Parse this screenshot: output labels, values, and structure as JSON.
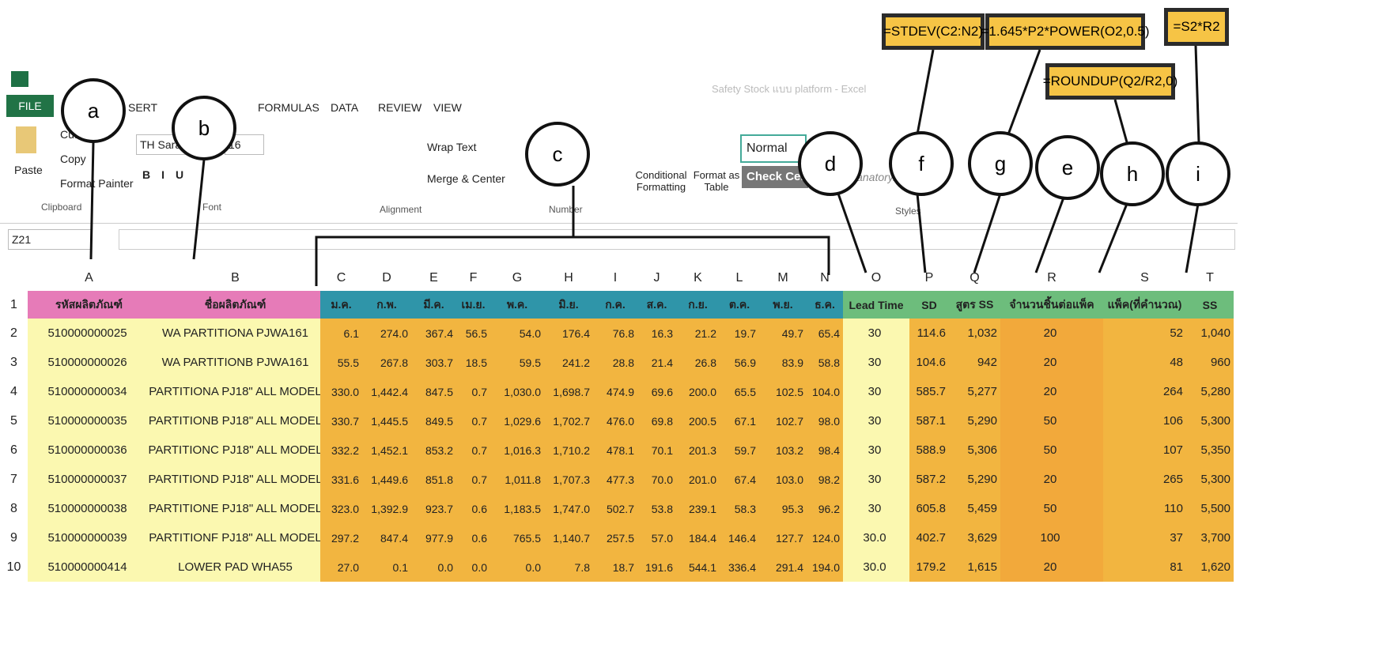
{
  "window_title": "Safety Stock แบบ platform - Excel",
  "ribbon": {
    "tabs": [
      "FILE",
      "SERT",
      "FORMULAS",
      "DATA",
      "REVIEW",
      "VIEW"
    ],
    "clipboard": {
      "paste": "Paste",
      "cut": "Cut",
      "copy": "Copy",
      "format_painter": "Format Painter",
      "label": "Clipboard"
    },
    "font": {
      "name": "TH Sarab",
      "size": "16",
      "label": "Font"
    },
    "alignment": {
      "wrap_text": "Wrap Text",
      "merge_center": "Merge & Center",
      "label": "Alignment"
    },
    "number": {
      "label": "Number"
    },
    "styles": {
      "conditional_formatting": "Conditional Formatting",
      "format_as_table": "Format as Table",
      "normal": "Normal",
      "check_cell": "Check Cell",
      "explanatory": "lanatory...",
      "label": "Styles"
    }
  },
  "name_box": "Z21",
  "formulas": [
    "=STDEV(C2:N2)",
    "=1.645*P2*POWER(O2,0.5)",
    "=S2*R2",
    "=ROUNDUP(Q2/R2,0)"
  ],
  "callouts": [
    "a",
    "b",
    "c",
    "d",
    "f",
    "g",
    "e",
    "h",
    "i"
  ],
  "columns": [
    "A",
    "B",
    "C",
    "D",
    "E",
    "F",
    "G",
    "H",
    "I",
    "J",
    "K",
    "L",
    "M",
    "N",
    "O",
    "P",
    "Q",
    "R",
    "S",
    "T"
  ],
  "row_numbers": [
    "1",
    "2",
    "3",
    "4",
    "5",
    "6",
    "7",
    "8",
    "9",
    "10"
  ],
  "header": [
    "รหัสผลิตภัณฑ์",
    "ชื่อผลิตภัณฑ์",
    "ม.ค.",
    "ก.พ.",
    "มี.ค.",
    "เม.ย.",
    "พ.ค.",
    "มิ.ย.",
    "ก.ค.",
    "ส.ค.",
    "ก.ย.",
    "ต.ค.",
    "พ.ย.",
    "ธ.ค.",
    "Lead Time",
    "SD",
    "สูตร SS",
    "จำนวนชิ้นต่อแพ็ค",
    "แพ็ค(ที่คำนวณ)",
    "SS"
  ],
  "rows": [
    [
      "510000000025",
      "WA PARTITIONA PJWA161",
      "6.1",
      "274.0",
      "367.4",
      "56.5",
      "54.0",
      "176.4",
      "76.8",
      "16.3",
      "21.2",
      "19.7",
      "49.7",
      "65.4",
      "30",
      "114.6",
      "1,032",
      "20",
      "52",
      "1,040"
    ],
    [
      "510000000026",
      "WA PARTITIONB PJWA161",
      "55.5",
      "267.8",
      "303.7",
      "18.5",
      "59.5",
      "241.2",
      "28.8",
      "21.4",
      "26.8",
      "56.9",
      "83.9",
      "58.8",
      "30",
      "104.6",
      "942",
      "20",
      "48",
      "960"
    ],
    [
      "510000000034",
      "PARTITIONA PJ18\" ALL MODEL",
      "330.0",
      "1,442.4",
      "847.5",
      "0.7",
      "1,030.0",
      "1,698.7",
      "474.9",
      "69.6",
      "200.0",
      "65.5",
      "102.5",
      "104.0",
      "30",
      "585.7",
      "5,277",
      "20",
      "264",
      "5,280"
    ],
    [
      "510000000035",
      "PARTITIONB PJ18\" ALL MODEL",
      "330.7",
      "1,445.5",
      "849.5",
      "0.7",
      "1,029.6",
      "1,702.7",
      "476.0",
      "69.8",
      "200.5",
      "67.1",
      "102.7",
      "98.0",
      "30",
      "587.1",
      "5,290",
      "50",
      "106",
      "5,300"
    ],
    [
      "510000000036",
      "PARTITIONC PJ18\" ALL MODEL",
      "332.2",
      "1,452.1",
      "853.2",
      "0.7",
      "1,016.3",
      "1,710.2",
      "478.1",
      "70.1",
      "201.3",
      "59.7",
      "103.2",
      "98.4",
      "30",
      "588.9",
      "5,306",
      "50",
      "107",
      "5,350"
    ],
    [
      "510000000037",
      "PARTITIOND PJ18\" ALL MODEL",
      "331.6",
      "1,449.6",
      "851.8",
      "0.7",
      "1,011.8",
      "1,707.3",
      "477.3",
      "70.0",
      "201.0",
      "67.4",
      "103.0",
      "98.2",
      "30",
      "587.2",
      "5,290",
      "20",
      "265",
      "5,300"
    ],
    [
      "510000000038",
      "PARTITIONE PJ18\" ALL MODEL",
      "323.0",
      "1,392.9",
      "923.7",
      "0.6",
      "1,183.5",
      "1,747.0",
      "502.7",
      "53.8",
      "239.1",
      "58.3",
      "95.3",
      "96.2",
      "30",
      "605.8",
      "5,459",
      "50",
      "110",
      "5,500"
    ],
    [
      "510000000039",
      "PARTITIONF PJ18\" ALL MODEL",
      "297.2",
      "847.4",
      "977.9",
      "0.6",
      "765.5",
      "1,140.7",
      "257.5",
      "57.0",
      "184.4",
      "146.4",
      "127.7",
      "124.0",
      "30.0",
      "402.7",
      "3,629",
      "100",
      "37",
      "3,700"
    ],
    [
      "510000000414",
      "LOWER PAD WHA55",
      "27.0",
      "0.1",
      "0.0",
      "0.0",
      "0.0",
      "7.8",
      "18.7",
      "191.6",
      "544.1",
      "336.4",
      "291.4",
      "194.0",
      "30.0",
      "179.2",
      "1,615",
      "20",
      "81",
      "1,620"
    ]
  ]
}
